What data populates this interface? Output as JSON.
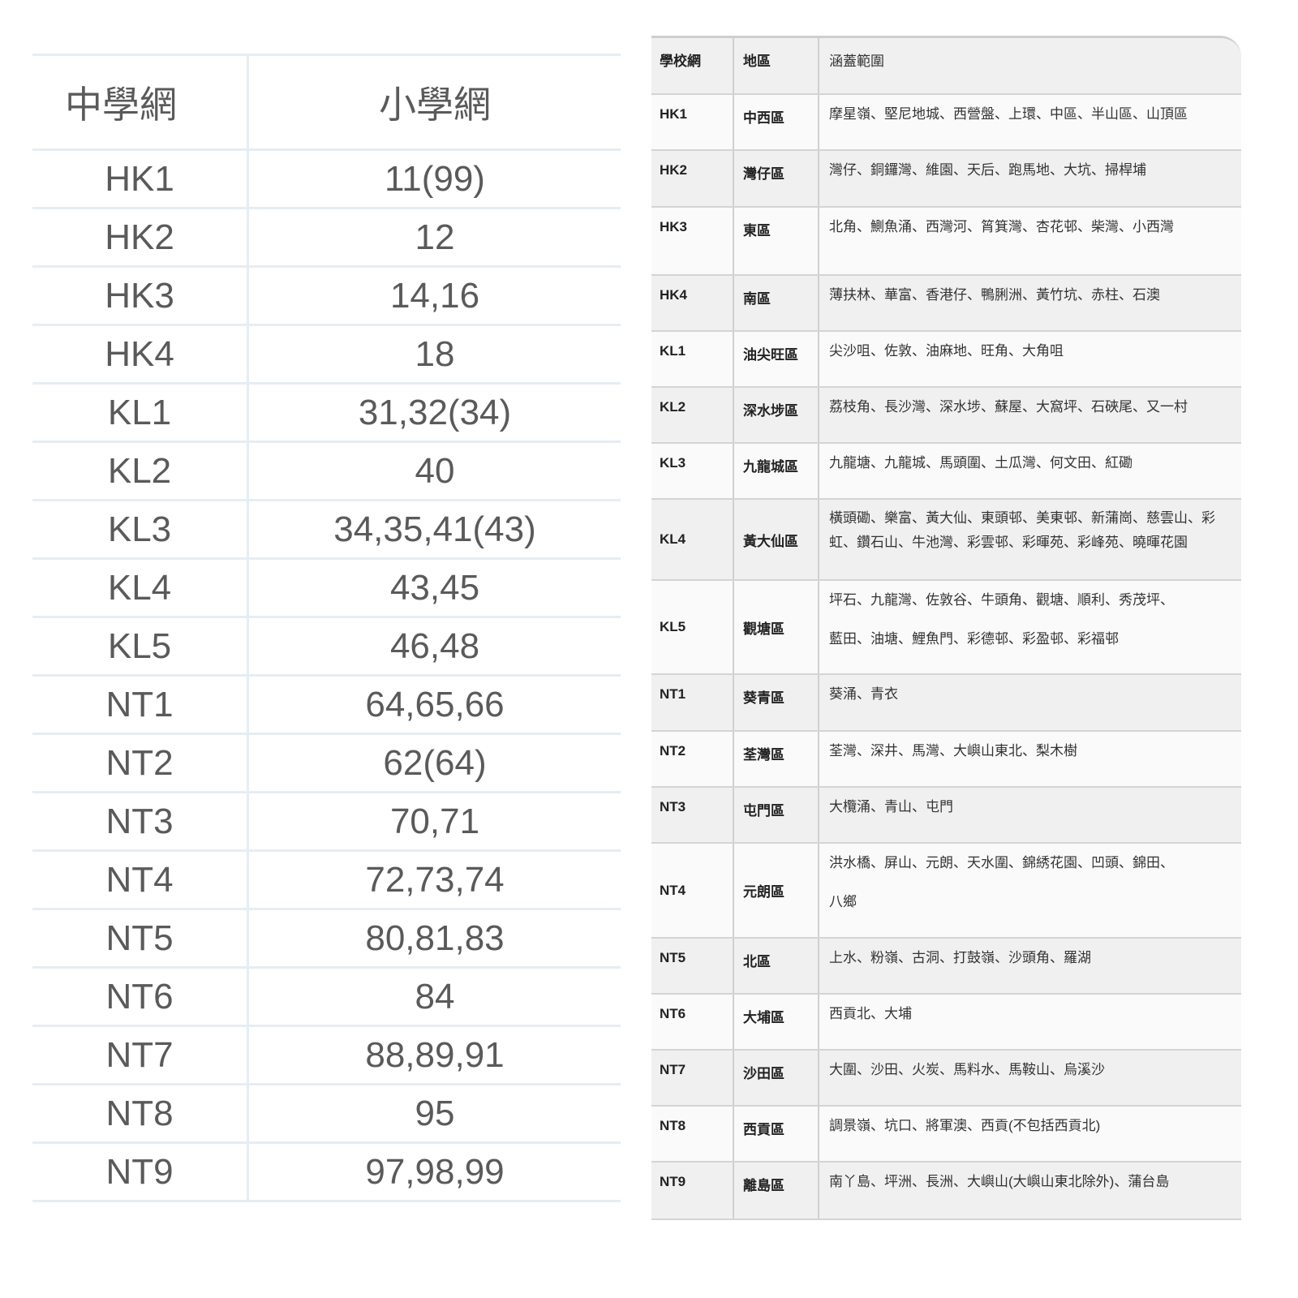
{
  "left_table": {
    "headers": [
      "中學網",
      "小學網"
    ],
    "rows": [
      [
        "HK1",
        "11(99)"
      ],
      [
        "HK2",
        "12"
      ],
      [
        "HK3",
        "14,16"
      ],
      [
        "HK4",
        "18"
      ],
      [
        "KL1",
        "31,32(34)"
      ],
      [
        "KL2",
        "40"
      ],
      [
        "KL3",
        "34,35,41(43)"
      ],
      [
        "KL4",
        "43,45"
      ],
      [
        "KL5",
        "46,48"
      ],
      [
        "NT1",
        "64,65,66"
      ],
      [
        "NT2",
        "62(64)"
      ],
      [
        "NT3",
        "70,71"
      ],
      [
        "NT4",
        "72,73,74"
      ],
      [
        "NT5",
        "80,81,83"
      ],
      [
        "NT6",
        "84"
      ],
      [
        "NT7",
        "88,89,91"
      ],
      [
        "NT8",
        "95"
      ],
      [
        "NT9",
        "97,98,99"
      ]
    ]
  },
  "right_table": {
    "headers": [
      "學校網",
      "地區",
      "涵蓋範圍"
    ],
    "rows": [
      {
        "net": "HK1",
        "district": "中西區",
        "coverage": [
          "摩星嶺、堅尼地城、西營盤、上環、中區、半山區、山頂區"
        ]
      },
      {
        "net": "HK2",
        "district": "灣仔區",
        "coverage": [
          "灣仔、銅鑼灣、維園、天后、跑馬地、大坑、掃桿埔"
        ]
      },
      {
        "net": "HK3",
        "district": "東區",
        "coverage": [
          "北角、鰂魚涌、西灣河、筲箕灣、杏花邨、柴灣、小西灣"
        ]
      },
      {
        "net": "HK4",
        "district": "南區",
        "coverage": [
          "薄扶林、華富、香港仔、鴨脷洲、黃竹坑、赤柱、石澳"
        ]
      },
      {
        "net": "KL1",
        "district": "油尖旺區",
        "coverage": [
          "尖沙咀、佐敦、油麻地、旺角、大角咀"
        ]
      },
      {
        "net": "KL2",
        "district": "深水埗區",
        "coverage": [
          "荔枝角、長沙灣、深水埗、蘇屋、大窩坪、石硤尾、又一村"
        ]
      },
      {
        "net": "KL3",
        "district": "九龍城區",
        "coverage": [
          "九龍塘、九龍城、馬頭圍、土瓜灣、何文田、紅磡"
        ]
      },
      {
        "net": "KL4",
        "district": "黃大仙區",
        "coverage": [
          "橫頭磡、樂富、黃大仙、東頭邨、美東邨、新蒲崗、慈雲山、彩",
          "虹、鑽石山、牛池灣、彩雲邨、彩暉苑、彩峰苑、曉暉花園"
        ]
      },
      {
        "net": "KL5",
        "district": "觀塘區",
        "coverage": [
          "坪石、九龍灣、佐敦谷、牛頭角、觀塘、順利、秀茂坪、",
          "藍田、油塘、鯉魚門、彩德邨、彩盈邨、彩福邨"
        ]
      },
      {
        "net": "NT1",
        "district": "葵青區",
        "coverage": [
          "葵涌、青衣"
        ]
      },
      {
        "net": "NT2",
        "district": "荃灣區",
        "coverage": [
          "荃灣、深井、馬灣、大嶼山東北、梨木樹"
        ]
      },
      {
        "net": "NT3",
        "district": "屯門區",
        "coverage": [
          "大欖涌、青山、屯門"
        ]
      },
      {
        "net": "NT4",
        "district": "元朗區",
        "coverage": [
          "洪水橋、屏山、元朗、天水圍、錦綉花園、凹頭、錦田、",
          "八鄉"
        ]
      },
      {
        "net": "NT5",
        "district": "北區",
        "coverage": [
          "上水、粉嶺、古洞、打鼓嶺、沙頭角、羅湖"
        ]
      },
      {
        "net": "NT6",
        "district": "大埔區",
        "coverage": [
          "西貢北、大埔"
        ]
      },
      {
        "net": "NT7",
        "district": "沙田區",
        "coverage": [
          "大圍、沙田、火炭、馬料水、馬鞍山、烏溪沙"
        ]
      },
      {
        "net": "NT8",
        "district": "西貢區",
        "coverage": [
          "調景嶺、坑口、將軍澳、西貢(不包括西貢北)"
        ]
      },
      {
        "net": "NT9",
        "district": "離島區",
        "coverage": [
          "南丫島、坪洲、長洲、大嶼山(大嶼山東北除外)、蒲台島"
        ]
      }
    ]
  }
}
